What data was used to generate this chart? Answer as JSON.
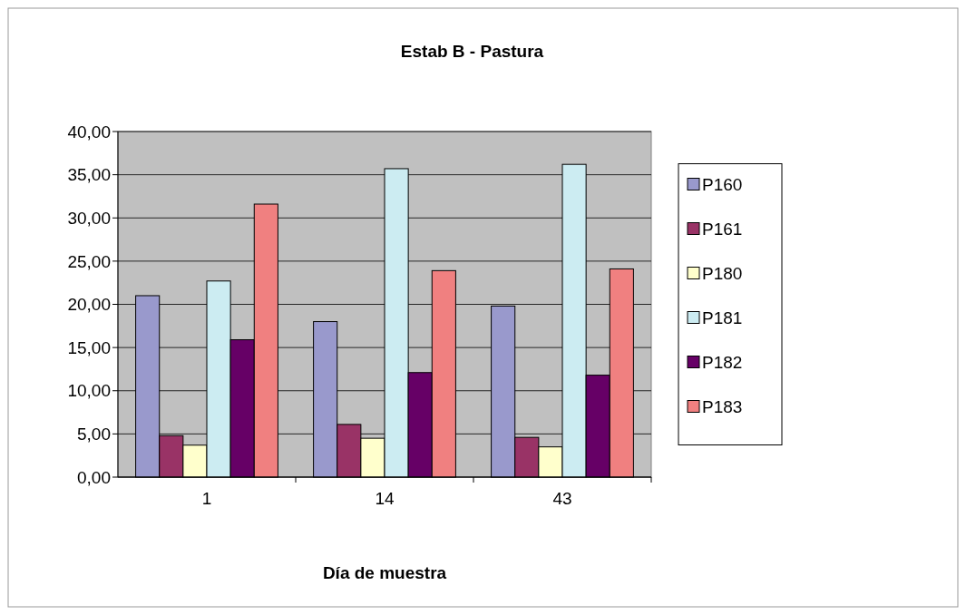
{
  "chart_data": {
    "type": "bar",
    "title": "Estab B - Pastura",
    "xlabel": "Día de muestra",
    "categories": [
      "1",
      "14",
      "43"
    ],
    "series": [
      {
        "name": "P160",
        "color": "#9999cc",
        "values": [
          21.0,
          18.0,
          19.8
        ]
      },
      {
        "name": "P161",
        "color": "#993366",
        "values": [
          4.8,
          6.1,
          4.6
        ]
      },
      {
        "name": "P180",
        "color": "#ffffcc",
        "values": [
          3.7,
          4.5,
          3.5
        ]
      },
      {
        "name": "P181",
        "color": "#ccecf2",
        "values": [
          22.7,
          35.7,
          36.2
        ]
      },
      {
        "name": "P182",
        "color": "#660066",
        "values": [
          15.9,
          12.1,
          11.8
        ]
      },
      {
        "name": "P183",
        "color": "#f08080",
        "values": [
          31.6,
          23.9,
          24.1
        ]
      }
    ],
    "ylim": [
      0,
      40
    ],
    "yticks": [
      {
        "value": 0,
        "label": "0,00"
      },
      {
        "value": 5,
        "label": "5,00"
      },
      {
        "value": 10,
        "label": "10,00"
      },
      {
        "value": 15,
        "label": "15,00"
      },
      {
        "value": 20,
        "label": "20,00"
      },
      {
        "value": 25,
        "label": "25,00"
      },
      {
        "value": 30,
        "label": "30,00"
      },
      {
        "value": 35,
        "label": "35,00"
      },
      {
        "value": 40,
        "label": "40,00"
      }
    ],
    "grid": "y",
    "legend": "right"
  }
}
